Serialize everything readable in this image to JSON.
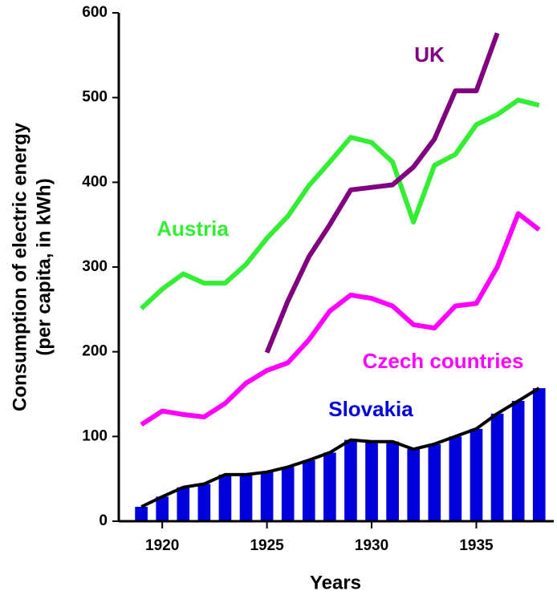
{
  "chart_data": {
    "type": "line",
    "x_label": "Years",
    "y_label": [
      "Consumption of electric energy",
      "(per capita, in kWh)"
    ],
    "x": [
      1919,
      1920,
      1921,
      1922,
      1923,
      1924,
      1925,
      1926,
      1927,
      1928,
      1929,
      1930,
      1931,
      1932,
      1933,
      1934,
      1935,
      1936,
      1937,
      1938
    ],
    "xlim": [
      1918,
      1938.7
    ],
    "xticks": [
      1920,
      1925,
      1930,
      1935
    ],
    "ylim": [
      0,
      600
    ],
    "yticks": [
      0,
      100,
      200,
      300,
      400,
      500,
      600
    ],
    "series": [
      {
        "name": "Slovakia",
        "color": "#0000dd",
        "line_color": "#000000",
        "bars": true,
        "values": [
          17,
          29,
          40,
          44,
          55,
          55,
          58,
          64,
          72,
          81,
          96,
          94,
          94,
          85,
          91,
          100,
          109,
          127,
          142,
          157
        ]
      },
      {
        "name": "Czech countries",
        "color": "#ff00ff",
        "values": [
          114,
          130,
          126,
          123,
          139,
          163,
          178,
          187,
          214,
          248,
          267,
          263,
          254,
          232,
          228,
          254,
          257,
          300,
          363,
          344
        ]
      },
      {
        "name": "Austria",
        "color": "#33ee33",
        "values": [
          251,
          274,
          292,
          281,
          281,
          303,
          334,
          360,
          396,
          424,
          453,
          447,
          424,
          353,
          420,
          433,
          468,
          480,
          497,
          491
        ]
      },
      {
        "name": "UK",
        "color": "#800080",
        "values": [
          null,
          null,
          null,
          null,
          null,
          null,
          199,
          260,
          312,
          350,
          391,
          394,
          397,
          418,
          451,
          508,
          508,
          576,
          null,
          null
        ]
      }
    ]
  }
}
